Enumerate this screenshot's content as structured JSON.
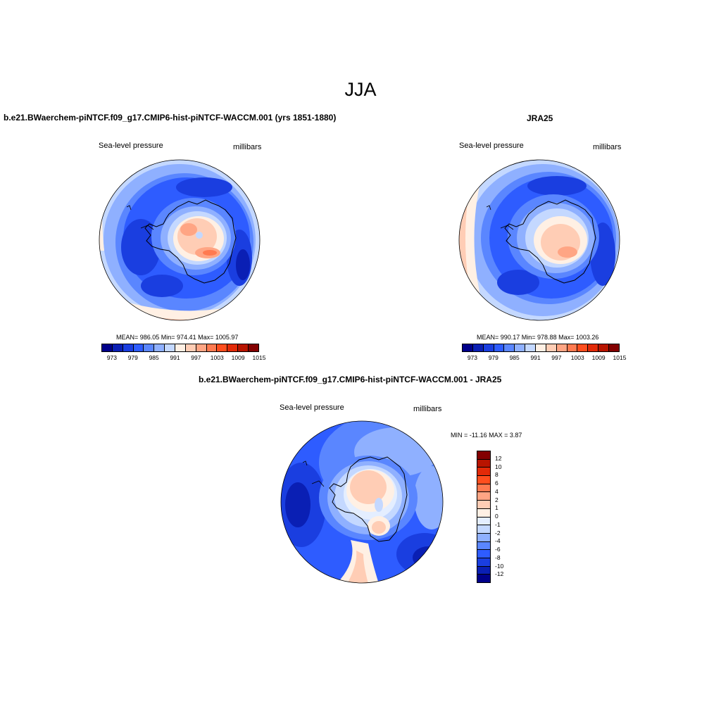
{
  "figure": {
    "season": "JJA"
  },
  "panels": [
    {
      "title": "b.e21.BWaerchem-piNTCF.f09_g17.CMIP6-hist-piNTCF-WACCM.001 (yrs 1851-1880)",
      "variable": "Sea-level pressure",
      "units": "millibars",
      "stats": "MEAN= 986.05  Min= 974.41  Max= 1005.97"
    },
    {
      "title": "JRA25",
      "variable": "Sea-level pressure",
      "units": "millibars",
      "stats": "MEAN= 990.17  Min= 978.88  Max= 1003.26"
    },
    {
      "title": "b.e21.BWaerchem-piNTCF.f09_g17.CMIP6-hist-piNTCF-WACCM.001 - JRA25",
      "variable": "Sea-level pressure",
      "units": "millibars",
      "stats": "MIN = -11.16 MAX =   3.87"
    }
  ],
  "colorbar_abs": {
    "ticks": [
      "973",
      "979",
      "985",
      "991",
      "997",
      "1003",
      "1009",
      "1015"
    ],
    "colors": [
      "#00008a",
      "#0a1fb4",
      "#1a3ee0",
      "#2e5cff",
      "#5a86ff",
      "#8fb0ff",
      "#c4d8ff",
      "#fff0e4",
      "#ffcdb5",
      "#ffa584",
      "#ff7a50",
      "#ff4e1e",
      "#e22a08",
      "#b81400",
      "#830000"
    ]
  },
  "colorbar_diff": {
    "ticks": [
      "12",
      "10",
      "8",
      "6",
      "4",
      "2",
      "1",
      "0",
      "-1",
      "-2",
      "-4",
      "-6",
      "-8",
      "-10",
      "-12"
    ],
    "colors": [
      "#830000",
      "#b81400",
      "#e22a08",
      "#ff4e1e",
      "#ff7a50",
      "#ffa584",
      "#ffcdb5",
      "#fff0e4",
      "#e4eeff",
      "#c4d8ff",
      "#8fb0ff",
      "#5a86ff",
      "#2e5cff",
      "#1a3ee0",
      "#0a1fb4",
      "#00008a"
    ]
  }
}
